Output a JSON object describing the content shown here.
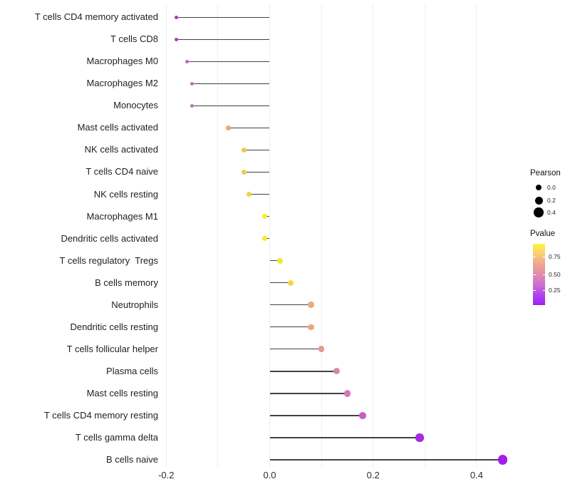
{
  "chart_data": {
    "type": "scatter",
    "variant": "lollipop",
    "title": "",
    "xlabel": "",
    "ylabel": "",
    "xlim": [
      -0.25,
      0.49
    ],
    "xticks": {
      "values": [
        -0.2,
        0.0,
        0.2,
        0.4
      ],
      "labels": [
        "-0.2",
        "0.0",
        "0.2",
        "0.4"
      ]
    },
    "grid": {
      "show": true,
      "step_values": [
        -0.2,
        -0.1,
        0.0,
        0.1,
        0.2,
        0.3,
        0.4
      ],
      "color": "#efefef"
    },
    "baseline_x": 0.0,
    "stem_color": "#424242",
    "size_encoding": "Pearson",
    "color_encoding": "Pvalue",
    "points": [
      {
        "label": "T cells CD4 memory activated",
        "pearson": -0.18,
        "color": "#AA3CB4"
      },
      {
        "label": "T cells CD8",
        "pearson": -0.18,
        "color": "#AC3FB6"
      },
      {
        "label": "Macrophages M0",
        "pearson": -0.16,
        "color": "#C463C5"
      },
      {
        "label": "Macrophages M2",
        "pearson": -0.15,
        "color": "#C667C7"
      },
      {
        "label": "Monocytes",
        "pearson": -0.15,
        "color": "#C86AC8"
      },
      {
        "label": "Mast cells activated",
        "pearson": -0.08,
        "color": "#EAA97B"
      },
      {
        "label": "NK cells activated",
        "pearson": -0.05,
        "color": "#F0C951"
      },
      {
        "label": "T cells CD4 naive",
        "pearson": -0.05,
        "color": "#F0C951"
      },
      {
        "label": "NK cells resting",
        "pearson": -0.04,
        "color": "#F2D348"
      },
      {
        "label": "Macrophages M1",
        "pearson": -0.01,
        "color": "#F7EC25"
      },
      {
        "label": "Dendritic cells activated",
        "pearson": -0.01,
        "color": "#F7EC25"
      },
      {
        "label": "T cells regulatory  Tregs",
        "pearson": 0.02,
        "color": "#F6E52D"
      },
      {
        "label": "B cells memory",
        "pearson": 0.04,
        "color": "#F3D843"
      },
      {
        "label": "Neutrophils",
        "pearson": 0.08,
        "color": "#ECAC75"
      },
      {
        "label": "Dendritic cells resting",
        "pearson": 0.08,
        "color": "#EBA87A"
      },
      {
        "label": "T cells follicular helper",
        "pearson": 0.1,
        "color": "#E59A8E"
      },
      {
        "label": "Plasma cells",
        "pearson": 0.13,
        "color": "#DD84AB"
      },
      {
        "label": "Mast cells resting",
        "pearson": 0.15,
        "color": "#D577BD"
      },
      {
        "label": "T cells CD4 memory resting",
        "pearson": 0.18,
        "color": "#C55FCC"
      },
      {
        "label": "T cells gamma delta",
        "pearson": 0.29,
        "color": "#A42BE1"
      },
      {
        "label": "B cells naive",
        "pearson": 0.45,
        "color": "#A21EEC"
      }
    ],
    "legend": {
      "size": {
        "title": "Pearson",
        "dot_color": "#000000",
        "entries": [
          {
            "label": "0.0",
            "value": 0.0
          },
          {
            "label": "0.2",
            "value": 0.2
          },
          {
            "label": "0.4",
            "value": 0.4
          }
        ]
      },
      "color": {
        "title": "Pvalue",
        "tick_labels": [
          "0.75",
          "0.50",
          "0.25"
        ],
        "gradient_top_to_bottom": [
          "#FCF43C",
          "#F7CE77",
          "#EFA492",
          "#E18BAB",
          "#CD6FD0",
          "#B044EE",
          "#A120F4"
        ]
      }
    }
  }
}
